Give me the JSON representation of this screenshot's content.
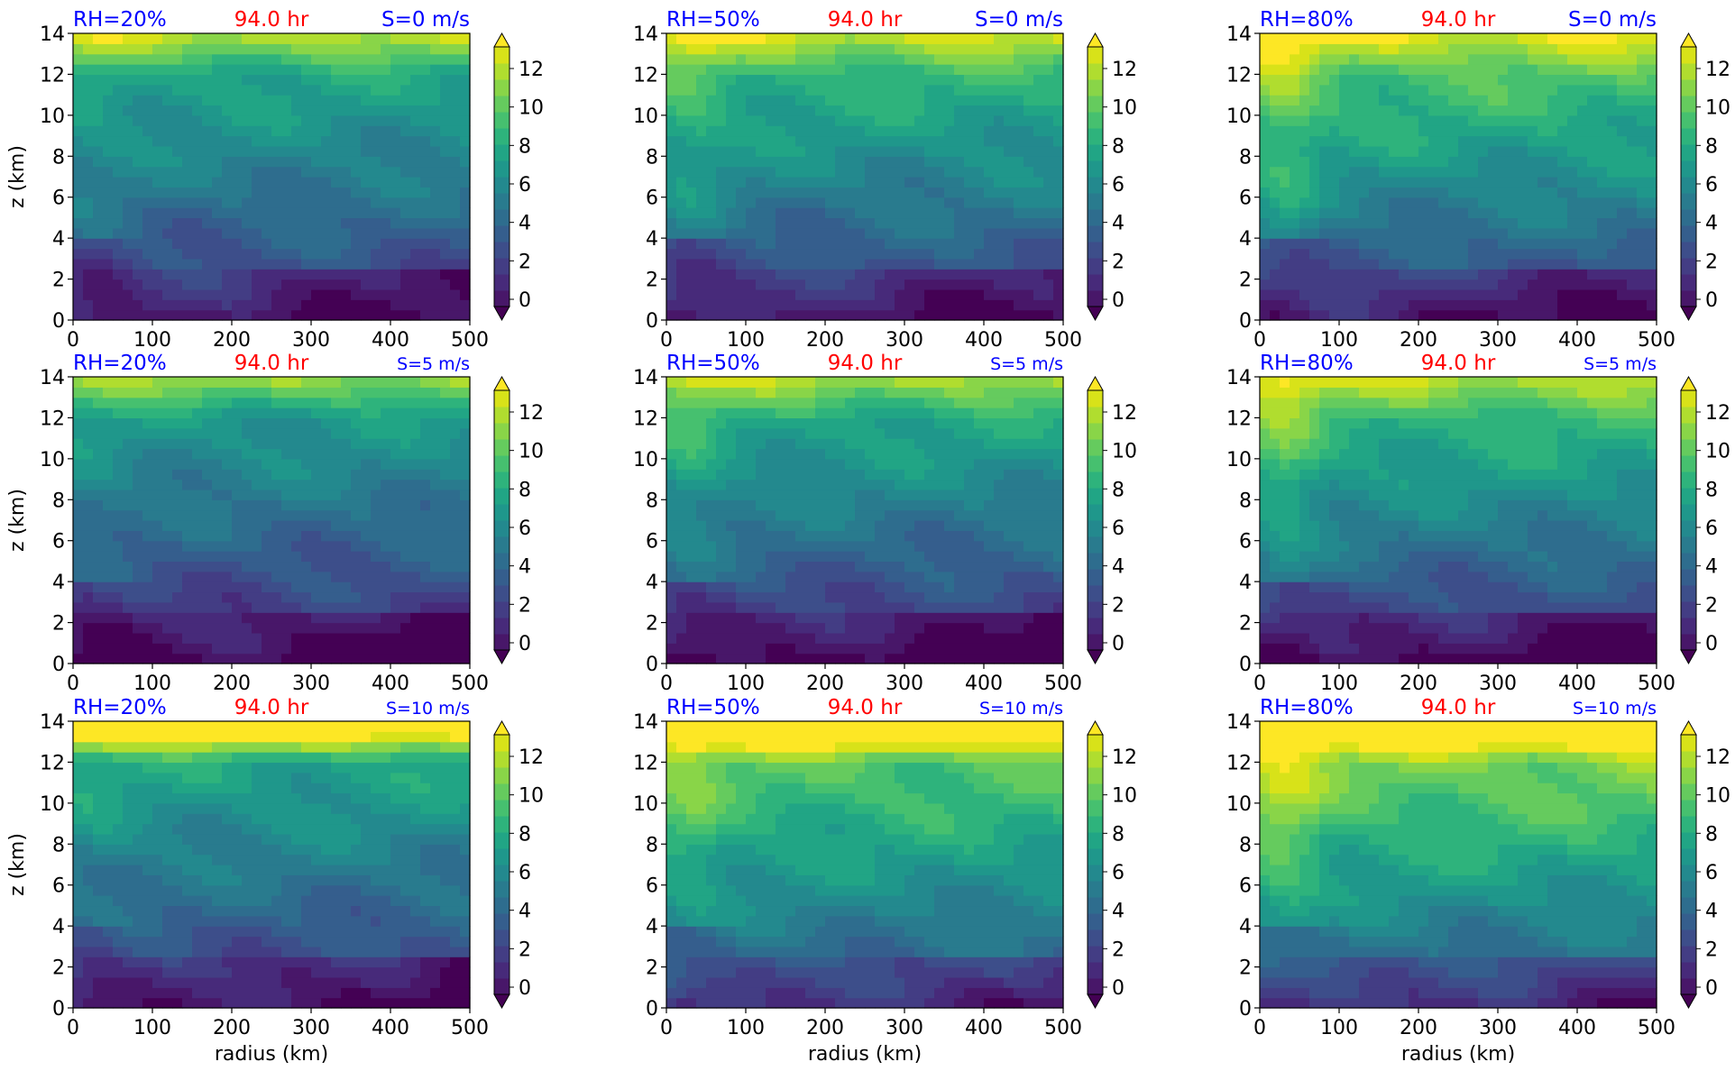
{
  "figure": {
    "time_label": "94.0 hr",
    "colors": {
      "title_blue": "#0000ff",
      "title_red": "#ff0000",
      "axis": "#000000"
    }
  },
  "chart_data": [
    {
      "type": "heatmap",
      "rh_label": "RH=20%",
      "time_label": "94.0 hr",
      "shear_label": "S=0 m/s",
      "rh": 20,
      "shear": 0,
      "xlabel": "",
      "ylabel": "z (km)",
      "xlim": [
        0,
        500
      ],
      "ylim": [
        0,
        14
      ],
      "xticks": [
        0,
        100,
        200,
        300,
        400,
        500
      ],
      "yticks": [
        0,
        2,
        4,
        6,
        8,
        10,
        12,
        14
      ]
    },
    {
      "type": "heatmap",
      "rh_label": "RH=50%",
      "time_label": "94.0 hr",
      "shear_label": "S=0 m/s",
      "rh": 50,
      "shear": 0,
      "xlabel": "",
      "ylabel": "",
      "xlim": [
        0,
        500
      ],
      "ylim": [
        0,
        14
      ],
      "xticks": [
        0,
        100,
        200,
        300,
        400,
        500
      ],
      "yticks": [
        0,
        2,
        4,
        6,
        8,
        10,
        12,
        14
      ]
    },
    {
      "type": "heatmap",
      "rh_label": "RH=80%",
      "time_label": "94.0 hr",
      "shear_label": "S=0 m/s",
      "rh": 80,
      "shear": 0,
      "xlabel": "",
      "ylabel": "",
      "xlim": [
        0,
        500
      ],
      "ylim": [
        0,
        14
      ],
      "xticks": [
        0,
        100,
        200,
        300,
        400,
        500
      ],
      "yticks": [
        0,
        2,
        4,
        6,
        8,
        10,
        12,
        14
      ]
    },
    {
      "type": "heatmap",
      "rh_label": "RH=20%",
      "time_label": "94.0 hr",
      "shear_label": "S=5 m/s",
      "rh": 20,
      "shear": 5,
      "xlabel": "",
      "ylabel": "z (km)",
      "xlim": [
        0,
        500
      ],
      "ylim": [
        0,
        14
      ],
      "xticks": [
        0,
        100,
        200,
        300,
        400,
        500
      ],
      "yticks": [
        0,
        2,
        4,
        6,
        8,
        10,
        12,
        14
      ]
    },
    {
      "type": "heatmap",
      "rh_label": "RH=50%",
      "time_label": "94.0 hr",
      "shear_label": "S=5 m/s",
      "rh": 50,
      "shear": 5,
      "xlabel": "",
      "ylabel": "",
      "xlim": [
        0,
        500
      ],
      "ylim": [
        0,
        14
      ],
      "xticks": [
        0,
        100,
        200,
        300,
        400,
        500
      ],
      "yticks": [
        0,
        2,
        4,
        6,
        8,
        10,
        12,
        14
      ]
    },
    {
      "type": "heatmap",
      "rh_label": "RH=80%",
      "time_label": "94.0 hr",
      "shear_label": "S=5 m/s",
      "rh": 80,
      "shear": 5,
      "xlabel": "",
      "ylabel": "",
      "xlim": [
        0,
        500
      ],
      "ylim": [
        0,
        14
      ],
      "xticks": [
        0,
        100,
        200,
        300,
        400,
        500
      ],
      "yticks": [
        0,
        2,
        4,
        6,
        8,
        10,
        12,
        14
      ]
    },
    {
      "type": "heatmap",
      "rh_label": "RH=20%",
      "time_label": "94.0 hr",
      "shear_label": "S=10 m/s",
      "rh": 20,
      "shear": 10,
      "xlabel": "radius (km)",
      "ylabel": "z (km)",
      "xlim": [
        0,
        500
      ],
      "ylim": [
        0,
        14
      ],
      "xticks": [
        0,
        100,
        200,
        300,
        400,
        500
      ],
      "yticks": [
        0,
        2,
        4,
        6,
        8,
        10,
        12,
        14
      ]
    },
    {
      "type": "heatmap",
      "rh_label": "RH=50%",
      "time_label": "94.0 hr",
      "shear_label": "S=10 m/s",
      "rh": 50,
      "shear": 10,
      "xlabel": "radius (km)",
      "ylabel": "",
      "xlim": [
        0,
        500
      ],
      "ylim": [
        0,
        14
      ],
      "xticks": [
        0,
        100,
        200,
        300,
        400,
        500
      ],
      "yticks": [
        0,
        2,
        4,
        6,
        8,
        10,
        12,
        14
      ]
    },
    {
      "type": "heatmap",
      "rh_label": "RH=80%",
      "time_label": "94.0 hr",
      "shear_label": "S=10 m/s",
      "rh": 80,
      "shear": 10,
      "xlabel": "radius (km)",
      "ylabel": "",
      "xlim": [
        0,
        500
      ],
      "ylim": [
        0,
        14
      ],
      "xticks": [
        0,
        100,
        200,
        300,
        400,
        500
      ],
      "yticks": [
        0,
        2,
        4,
        6,
        8,
        10,
        12,
        14
      ]
    }
  ],
  "colorbar": {
    "ticks": [
      0,
      2,
      4,
      6,
      8,
      10,
      12
    ],
    "levels": [
      0,
      1,
      2,
      3,
      4,
      5,
      6,
      7,
      8,
      9,
      10,
      11,
      12,
      13
    ],
    "extend": "both",
    "colors": [
      "#440154",
      "#481769",
      "#472a7a",
      "#433d84",
      "#3d4e8a",
      "#355e8d",
      "#2e6d8e",
      "#297b8e",
      "#23898e",
      "#1f978b",
      "#21a585",
      "#2eb37c",
      "#46c06f",
      "#65cb5e",
      "#89d548",
      "#b0dd2f",
      "#d8e219",
      "#fde725"
    ]
  }
}
